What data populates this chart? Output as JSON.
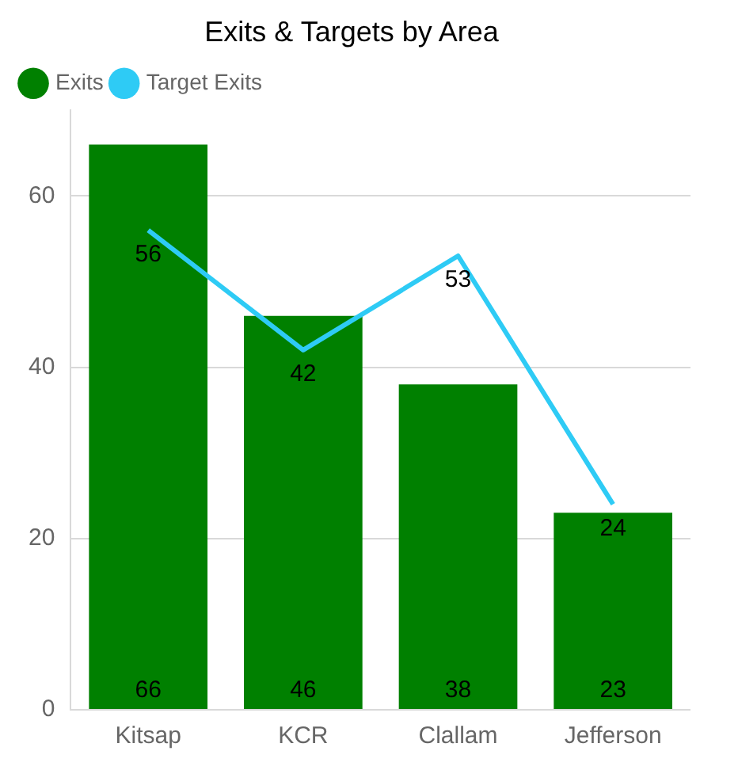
{
  "chart_data": {
    "type": "bar",
    "title": "Exits & Targets by Area",
    "categories": [
      "Kitsap",
      "KCR",
      "Clallam",
      "Jefferson"
    ],
    "series": [
      {
        "name": "Exits",
        "color": "#008000",
        "values": [
          66,
          46,
          38,
          23
        ]
      },
      {
        "name": "Target Exits",
        "type": "line",
        "color": "#2ecbf5",
        "values": [
          56,
          42,
          53,
          24
        ]
      }
    ],
    "ylim": [
      0,
      70
    ],
    "yticks": [
      0,
      20,
      40,
      60
    ],
    "grid": "y",
    "legend": "top left",
    "marker": "none",
    "data_labels": true
  }
}
